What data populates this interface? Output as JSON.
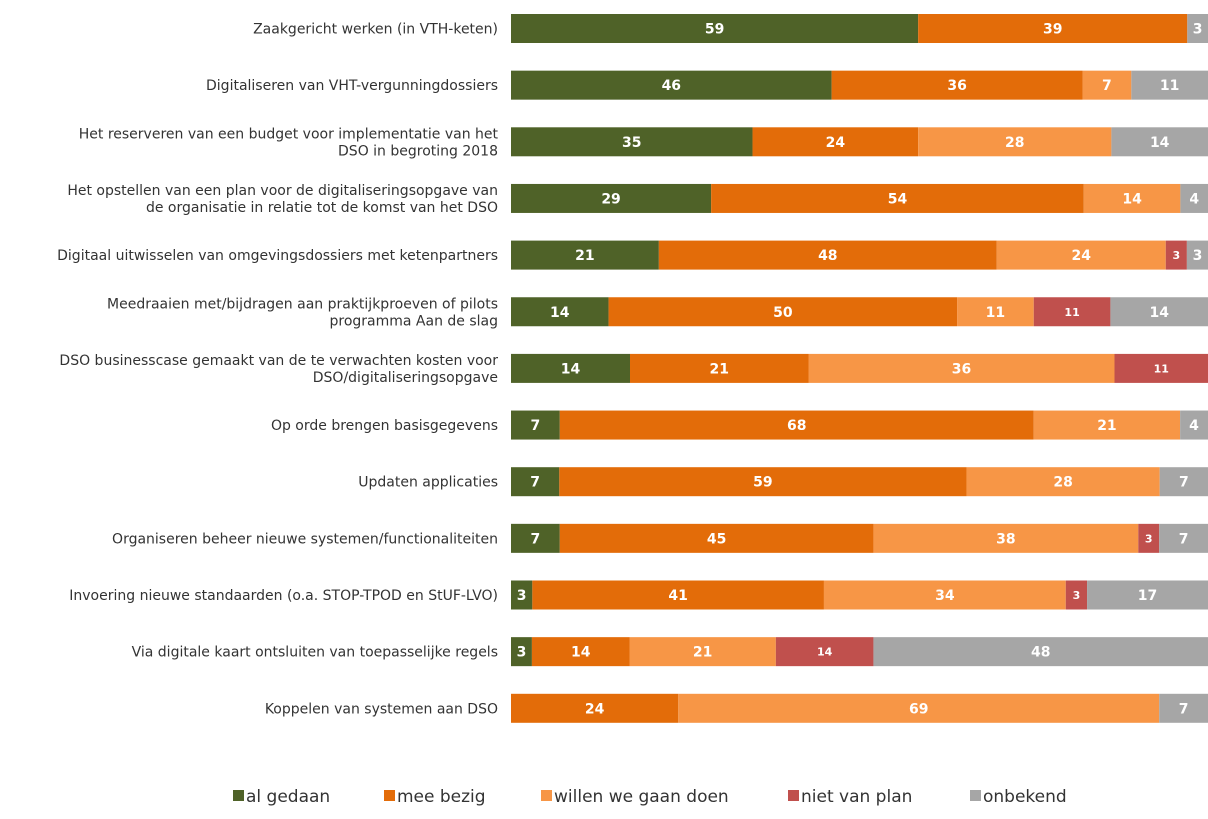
{
  "chart_data": {
    "type": "bar",
    "orientation": "horizontal",
    "stacked": true,
    "grid": false,
    "legend_position": "bottom",
    "categories": [
      [
        "Zaakgericht werken (in VTH-keten)"
      ],
      [
        "Digitaliseren van VHT-vergunningdossiers"
      ],
      [
        "Het reserveren van een budget voor implementatie van het",
        "DSO in begroting 2018"
      ],
      [
        "Het opstellen van een plan voor de digitaliseringsopgave van",
        "de organisatie in relatie tot de komst van het DSO"
      ],
      [
        "Digitaal uitwisselen van omgevingsdossiers met ketenpartners"
      ],
      [
        "Meedraaien met/bijdragen aan praktijkproeven of pilots",
        "programma Aan de slag"
      ],
      [
        "DSO businesscase gemaakt van de te verwachten kosten voor",
        "DSO/digitaliseringsopgave"
      ],
      [
        "Op orde brengen basisgegevens"
      ],
      [
        "Updaten applicaties"
      ],
      [
        "Organiseren beheer nieuwe systemen/functionaliteiten"
      ],
      [
        "Invoering nieuwe standaarden (o.a. STOP-TPOD en StUF-LVO)"
      ],
      [
        "Via digitale kaart ontsluiten van toepasselijke regels"
      ],
      [
        "Koppelen van systemen aan DSO"
      ]
    ],
    "series": [
      {
        "name": "al gedaan",
        "color": "#4f6228",
        "values": [
          59,
          46,
          35,
          29,
          21,
          14,
          14,
          7,
          7,
          7,
          3,
          3,
          0
        ]
      },
      {
        "name": "mee bezig",
        "color": "#e36c09",
        "values": [
          39,
          36,
          24,
          54,
          48,
          50,
          21,
          68,
          59,
          45,
          41,
          14,
          24
        ]
      },
      {
        "name": "willen we gaan doen",
        "color": "#f79646",
        "values": [
          0,
          7,
          28,
          14,
          24,
          11,
          36,
          21,
          28,
          38,
          34,
          21,
          69
        ]
      },
      {
        "name": "niet van plan",
        "color": "#c0504d",
        "values": [
          0,
          0,
          0,
          0,
          3,
          11,
          11,
          0,
          0,
          3,
          3,
          14,
          0
        ]
      },
      {
        "name": "onbekend",
        "color": "#a6a6a6",
        "values": [
          3,
          11,
          14,
          4,
          3,
          14,
          0,
          4,
          7,
          7,
          17,
          48,
          7
        ]
      }
    ]
  }
}
